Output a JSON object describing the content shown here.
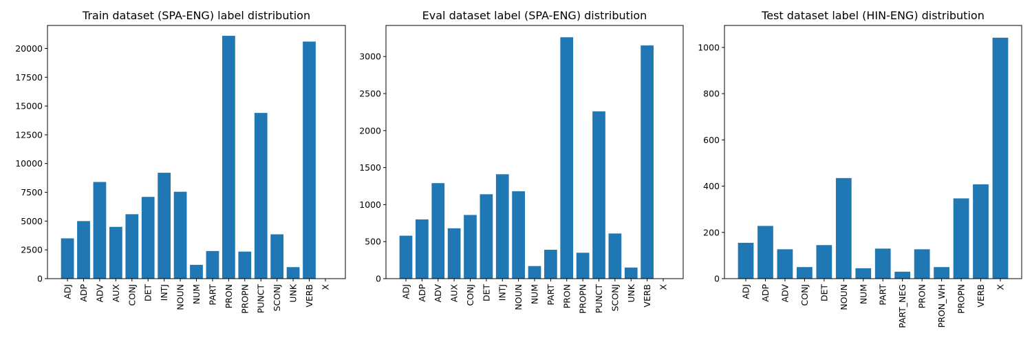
{
  "chart_data": [
    {
      "type": "bar",
      "title": "Train dataset (SPA-ENG) label distribution",
      "xlabel": "",
      "ylabel": "",
      "ylim": [
        0,
        22000
      ],
      "yticks": [
        0,
        2500,
        5000,
        7500,
        10000,
        12500,
        15000,
        17500,
        20000
      ],
      "color": "#1f77b4",
      "categories": [
        "ADJ",
        "ADP",
        "ADV",
        "AUX",
        "CONJ",
        "DET",
        "INTJ",
        "NOUN",
        "NUM",
        "PART",
        "PRON",
        "PROPN",
        "PUNCT",
        "SCONJ",
        "UNK",
        "VERB",
        "X"
      ],
      "values": [
        3500,
        5000,
        8400,
        4500,
        5600,
        7100,
        9200,
        7550,
        1200,
        2400,
        21100,
        2350,
        14400,
        3850,
        1000,
        20600,
        0
      ]
    },
    {
      "type": "bar",
      "title": "Eval dataset label (SPA-ENG) distribution",
      "xlabel": "",
      "ylabel": "",
      "ylim": [
        0,
        3420
      ],
      "yticks": [
        0,
        500,
        1000,
        1500,
        2000,
        2500,
        3000
      ],
      "color": "#1f77b4",
      "categories": [
        "ADJ",
        "ADP",
        "ADV",
        "AUX",
        "CONJ",
        "DET",
        "INTJ",
        "NOUN",
        "NUM",
        "PART",
        "PRON",
        "PROPN",
        "PUNCT",
        "SCONJ",
        "UNK",
        "VERB",
        "X"
      ],
      "values": [
        580,
        800,
        1290,
        680,
        860,
        1140,
        1410,
        1180,
        170,
        390,
        3260,
        350,
        2260,
        610,
        150,
        3150,
        0
      ]
    },
    {
      "type": "bar",
      "title": "Test dataset label (HIN-ENG) distribution",
      "xlabel": "",
      "ylabel": "",
      "ylim": [
        0,
        1095
      ],
      "yticks": [
        0,
        200,
        400,
        600,
        800,
        1000
      ],
      "color": "#1f77b4",
      "categories": [
        "ADJ",
        "ADP",
        "ADV",
        "CONJ",
        "DET",
        "NOUN",
        "NUM",
        "PART",
        "PART_NEG",
        "PRON",
        "PRON_WH",
        "PROPN",
        "VERB",
        "X"
      ],
      "values": [
        155,
        228,
        127,
        50,
        145,
        435,
        45,
        130,
        30,
        127,
        50,
        347,
        408,
        1042
      ]
    }
  ]
}
